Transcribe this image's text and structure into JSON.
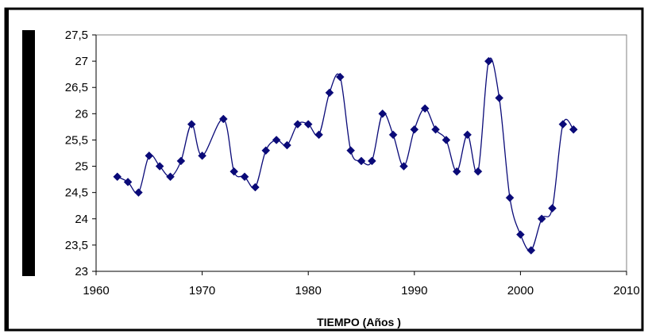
{
  "chart_data": {
    "type": "line",
    "title": "",
    "xlabel": "TIEMPO (Años )",
    "ylabel": "",
    "xlim": [
      1960,
      2010
    ],
    "ylim": [
      23,
      27.5
    ],
    "x_ticks": [
      1960,
      1970,
      1980,
      1990,
      2000,
      2010
    ],
    "y_ticks": [
      "27,5",
      "27",
      "26,5",
      "26",
      "25,5",
      "25",
      "24,5",
      "24",
      "23,5",
      "23"
    ],
    "y_tick_values": [
      27.5,
      27,
      26.5,
      26,
      25.5,
      25,
      24.5,
      24,
      23.5,
      23
    ],
    "grid": false,
    "legend": "none",
    "line_color": "#0a0a78",
    "marker": "diamond",
    "series": [
      {
        "x": [
          1962,
          1963,
          1964,
          1965,
          1966,
          1967,
          1968,
          1969,
          1970,
          1972,
          1973,
          1974,
          1975,
          1976,
          1977,
          1978,
          1979,
          1980,
          1981,
          1982,
          1983,
          1984,
          1985,
          1986,
          1987,
          1988,
          1989,
          1990,
          1991,
          1992,
          1993,
          1994,
          1995,
          1996,
          1997,
          1998,
          1999,
          2000,
          2001,
          2002,
          2003,
          2004,
          2005
        ],
        "values": [
          24.8,
          24.7,
          24.5,
          25.2,
          25.0,
          24.8,
          25.1,
          25.8,
          25.2,
          25.9,
          24.9,
          24.8,
          24.6,
          25.3,
          25.5,
          25.4,
          25.8,
          25.8,
          25.6,
          26.4,
          26.7,
          25.3,
          25.1,
          25.1,
          26.0,
          25.6,
          25.0,
          25.7,
          26.1,
          25.7,
          25.5,
          24.9,
          25.6,
          24.9,
          27.0,
          26.3,
          24.4,
          23.7,
          23.4,
          24.0,
          24.2,
          25.8,
          25.7
        ]
      }
    ]
  }
}
